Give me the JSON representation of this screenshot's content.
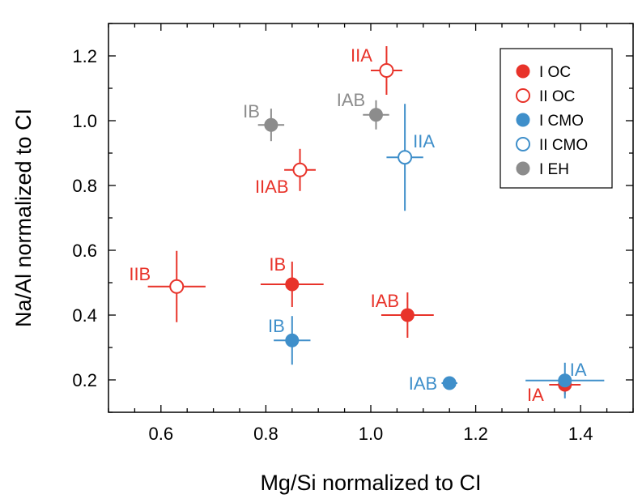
{
  "chart_data": {
    "type": "scatter",
    "xlabel": "Mg/Si normalized to CI",
    "ylabel": "Na/Al normalized to CI",
    "xlim": [
      0.5,
      1.5
    ],
    "ylim": [
      0.1,
      1.3
    ],
    "xticks": [
      0.6,
      0.8,
      1.0,
      1.2,
      1.4
    ],
    "xtick_labels": [
      "0.6",
      "0.8",
      "1.0",
      "1.2",
      "1.4"
    ],
    "yticks": [
      0.2,
      0.4,
      0.6,
      0.8,
      1.0,
      1.2
    ],
    "ytick_labels": [
      "0.2",
      "0.4",
      "0.6",
      "0.8",
      "1.0",
      "1.2"
    ],
    "grid": false,
    "legend_position": "top-right",
    "series": [
      {
        "name": "I OC",
        "color": "#e8332a",
        "filled": true,
        "points": [
          {
            "label": "IA",
            "x": 1.37,
            "y": 0.185,
            "xerr": 0.03,
            "yerr": 0.03
          },
          {
            "label": "IB",
            "x": 0.85,
            "y": 0.495,
            "xerr": 0.06,
            "yerr": 0.07
          },
          {
            "label": "IAB",
            "x": 1.07,
            "y": 0.4,
            "xerr": 0.05,
            "yerr": 0.07
          }
        ]
      },
      {
        "name": "II OC",
        "color": "#e8332a",
        "filled": false,
        "points": [
          {
            "label": "IIA",
            "x": 1.03,
            "y": 1.155,
            "xerr": 0.03,
            "yerr": 0.075
          },
          {
            "label": "IIB",
            "x": 0.63,
            "y": 0.488,
            "xerr": 0.055,
            "yerr": 0.11
          },
          {
            "label": "IIAB",
            "x": 0.865,
            "y": 0.848,
            "xerr": 0.03,
            "yerr": 0.065
          }
        ]
      },
      {
        "name": "I CMO",
        "color": "#3f8fca",
        "filled": true,
        "points": [
          {
            "label": "IA",
            "x": 1.37,
            "y": 0.198,
            "xerr": 0.075,
            "yerr": 0.055
          },
          {
            "label": "IB",
            "x": 0.85,
            "y": 0.322,
            "xerr": 0.035,
            "yerr": 0.075
          },
          {
            "label": "IAB",
            "x": 1.15,
            "y": 0.19,
            "xerr": 0.015,
            "yerr": 0.015
          }
        ]
      },
      {
        "name": "II CMO",
        "color": "#3f8fca",
        "filled": false,
        "points": [
          {
            "label": "IIA",
            "x": 1.065,
            "y": 0.887,
            "xerr": 0.035,
            "yerr": 0.165
          }
        ]
      },
      {
        "name": "I EH",
        "color": "#8c8c8c",
        "filled": true,
        "points": [
          {
            "label": "IB",
            "x": 0.81,
            "y": 0.987,
            "xerr": 0.025,
            "yerr": 0.05
          },
          {
            "label": "IAB",
            "x": 1.01,
            "y": 1.018,
            "xerr": 0.025,
            "yerr": 0.045
          }
        ]
      }
    ]
  }
}
